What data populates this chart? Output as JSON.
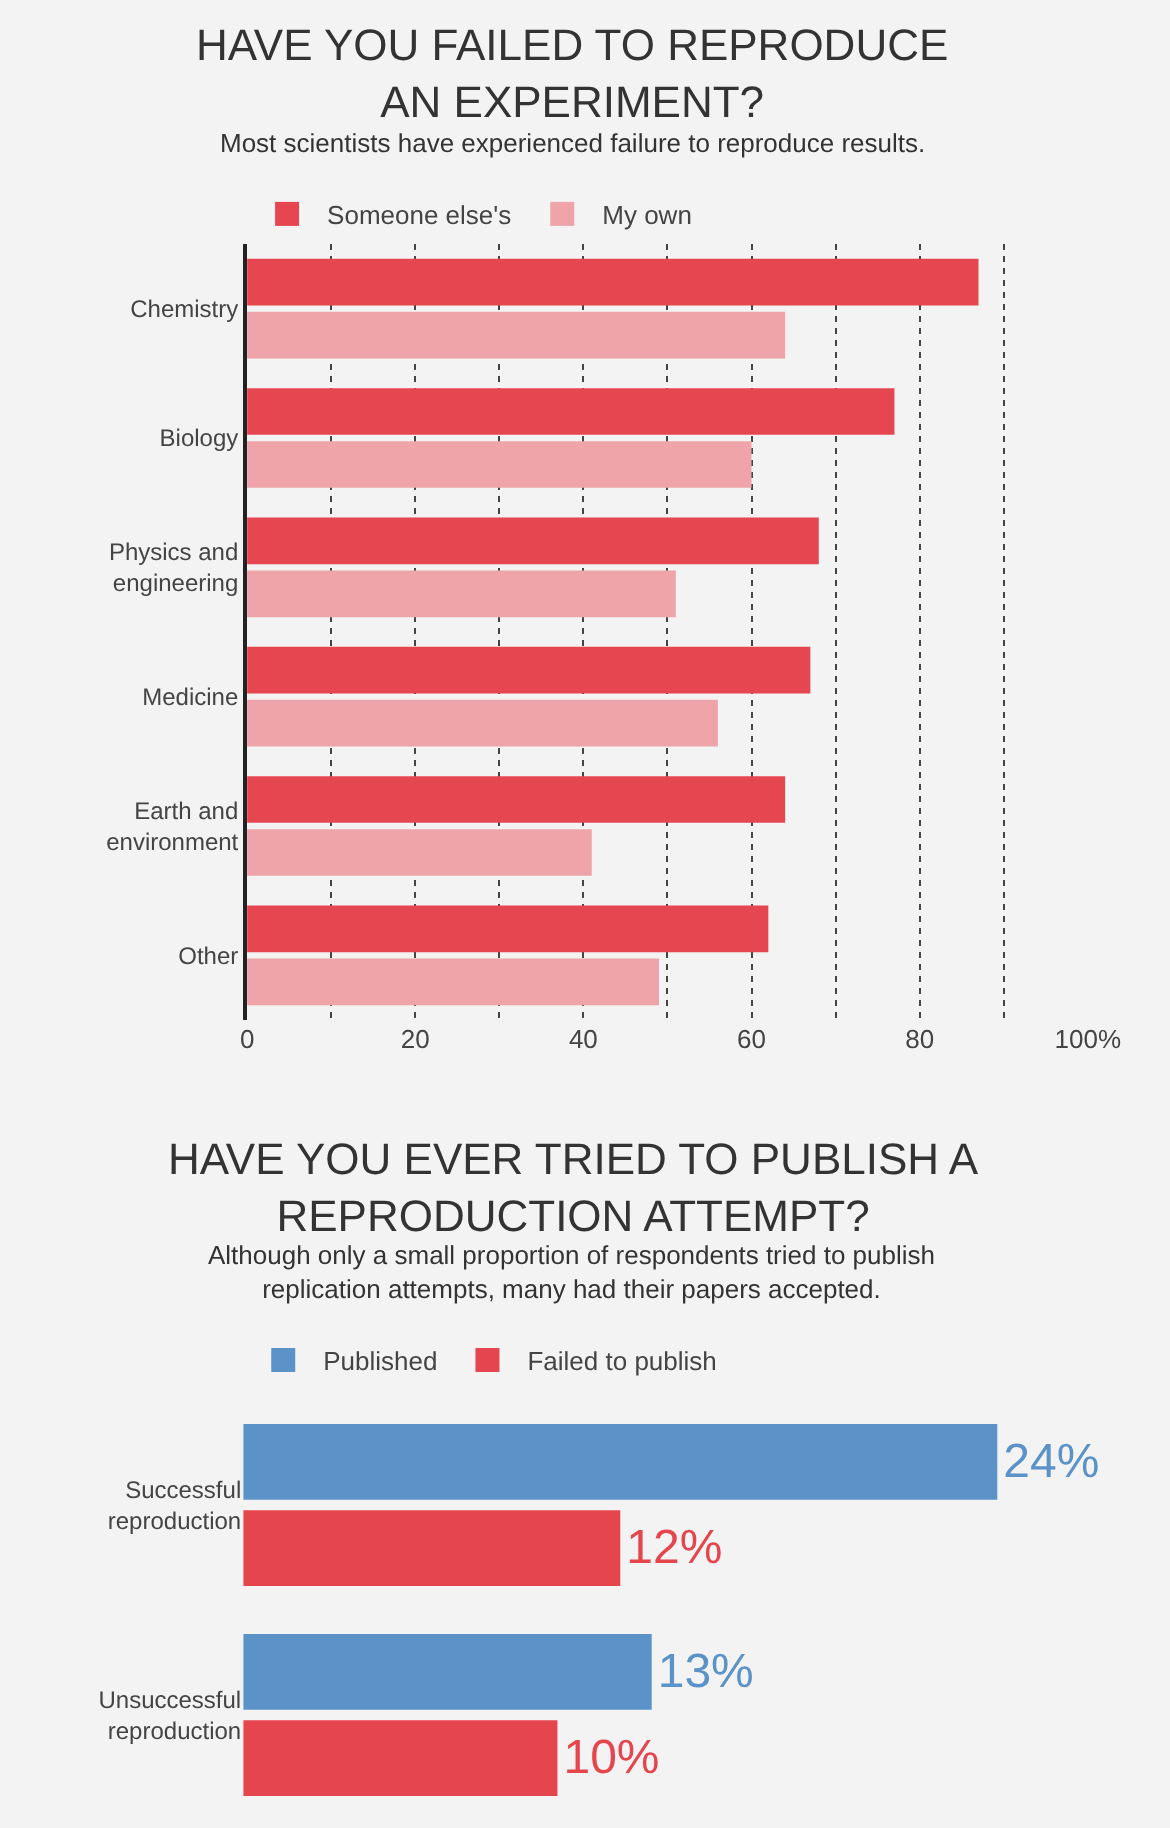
{
  "chart_data": [
    {
      "type": "bar",
      "orientation": "horizontal",
      "title": "HAVE YOU FAILED TO REPRODUCE AN EXPERIMENT?",
      "subtitle": "Most scientists have experienced failure to reproduce results.",
      "categories": [
        "Chemistry",
        "Biology",
        "Physics and engineering",
        "Medicine",
        "Earth and environment",
        "Other"
      ],
      "series": [
        {
          "name": "Someone else's",
          "color": "#e64650",
          "values": [
            87,
            77,
            68,
            67,
            64,
            62
          ]
        },
        {
          "name": "My own",
          "color": "#eea4a9",
          "values": [
            64,
            60,
            51,
            56,
            41,
            49
          ]
        }
      ],
      "xlim": [
        0,
        100
      ],
      "xticks": [
        0,
        {
          "value": 10,
          "label": null
        },
        20,
        {
          "value": 30,
          "label": null
        },
        40,
        {
          "value": 50,
          "label": null
        },
        60,
        {
          "value": 70,
          "label": null
        },
        80,
        {
          "value": 90,
          "label": null
        },
        {
          "value": 100,
          "label": "100%"
        }
      ],
      "grid": "x",
      "legend": "top"
    },
    {
      "type": "bar",
      "orientation": "horizontal",
      "title": "HAVE YOU EVER TRIED TO PUBLISH A REPRODUCTION ATTEMPT?",
      "subtitle": "Although only a small proportion of respondents tried to publish replication attempts, many had their papers accepted.",
      "categories": [
        "Successful reproduction",
        "Unsuccessful reproduction"
      ],
      "series": [
        {
          "name": "Published",
          "color": "#5b93c8",
          "values": [
            24,
            13
          ],
          "value_labels": [
            "24%",
            "13%"
          ]
        },
        {
          "name": "Failed to publish",
          "color": "#e5454d",
          "values": [
            12,
            10
          ],
          "value_labels": [
            "12%",
            "10%"
          ]
        }
      ],
      "tick_labels": "y",
      "legend": "top"
    }
  ]
}
